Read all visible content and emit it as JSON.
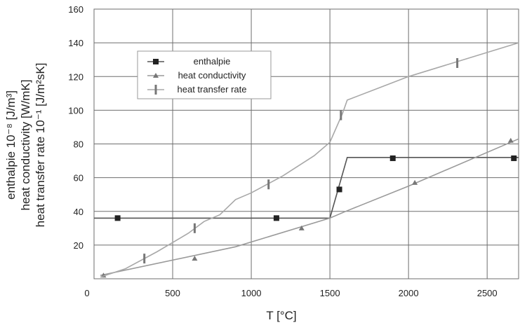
{
  "chart_data": {
    "type": "line",
    "xlabel": "T [°C]",
    "ylabel_lines": [
      "enthalpie 10⁻⁸ [J/m³]",
      "heat conductivity [W/mK]",
      "heat transfer rate 10⁻¹ [J/m²sK]"
    ],
    "xlim": [
      0,
      2700
    ],
    "ylim": [
      0,
      160
    ],
    "x_ticks": [
      0,
      500,
      1000,
      1500,
      2000,
      2500
    ],
    "y_ticks": [
      20,
      40,
      60,
      80,
      100,
      120,
      140,
      160
    ],
    "x_tick_labels": [
      "0",
      "500",
      "1000",
      "1500",
      "2000",
      "2500"
    ],
    "y_tick_labels": [
      "20",
      "40",
      "60",
      "80",
      "100",
      "120",
      "140",
      "160"
    ],
    "grid": true,
    "legend_position": "upper-left",
    "series": [
      {
        "name": "enthalpie",
        "marker": "square",
        "color": "#555555",
        "marker_color": "#222222",
        "line": [
          [
            0,
            36
          ],
          [
            1500,
            36
          ],
          [
            1610,
            72
          ],
          [
            2700,
            72
          ]
        ],
        "markers": [
          [
            150,
            36
          ],
          [
            1160,
            36
          ],
          [
            1560,
            53
          ],
          [
            1900,
            71.5
          ],
          [
            2670,
            71.5
          ]
        ]
      },
      {
        "name": "heat conductivity",
        "marker": "triangle",
        "color": "#9a9a9a",
        "marker_color": "#777777",
        "line": [
          [
            40,
            2
          ],
          [
            900,
            19
          ],
          [
            1500,
            36
          ],
          [
            1600,
            40
          ],
          [
            2000,
            55
          ],
          [
            2700,
            83
          ]
        ],
        "markers": [
          [
            60,
            2
          ],
          [
            640,
            12
          ],
          [
            1320,
            30
          ],
          [
            2040,
            57
          ],
          [
            2650,
            82
          ]
        ]
      },
      {
        "name": "heat transfer rate",
        "marker": "vbar",
        "color": "#a8a8a8",
        "marker_color": "#777777",
        "line": [
          [
            40,
            1
          ],
          [
            200,
            6
          ],
          [
            400,
            16
          ],
          [
            600,
            27
          ],
          [
            700,
            34
          ],
          [
            800,
            38
          ],
          [
            900,
            47
          ],
          [
            1000,
            51
          ],
          [
            1200,
            61
          ],
          [
            1400,
            73
          ],
          [
            1500,
            81
          ],
          [
            1580,
            98
          ],
          [
            1610,
            106
          ],
          [
            2000,
            120
          ],
          [
            2700,
            140
          ]
        ],
        "markers": [
          [
            320,
            12
          ],
          [
            640,
            30
          ],
          [
            1110,
            56
          ],
          [
            1570,
            97
          ],
          [
            2310,
            128
          ]
        ]
      }
    ]
  }
}
